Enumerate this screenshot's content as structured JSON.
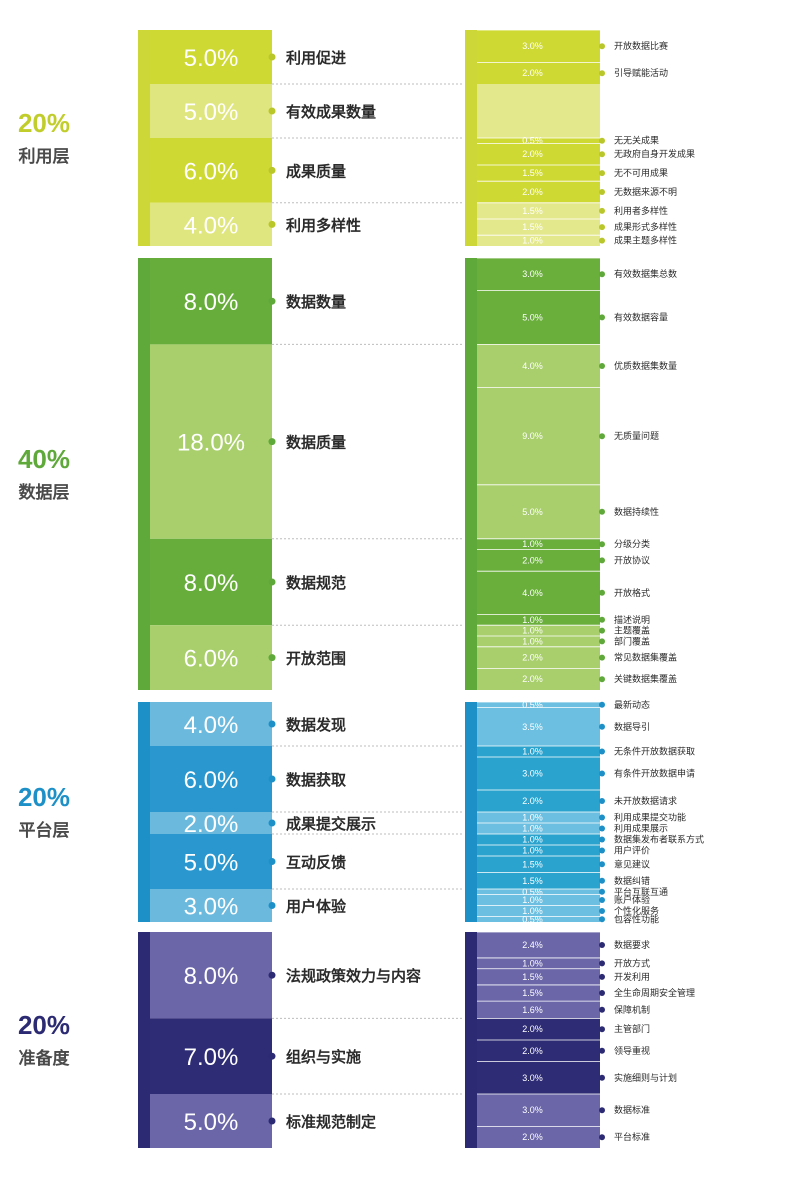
{
  "chart_data": {
    "type": "table",
    "title": "",
    "levels": [
      {
        "pct": "20%",
        "name": "利用层",
        "colors": {
          "accent": "#cdd838",
          "dark": "#cfd933",
          "light": "#e0e67f",
          "sub_dark": "#cfd933",
          "sub_light": "#e3e88d",
          "dot": "#b9c72a",
          "pct_text": "#c1cd2b"
        },
        "groups": [
          {
            "pct": "5.0%",
            "name": "利用促进",
            "shade": "dark",
            "items": [
              {
                "pct": "3.0%",
                "name": "开放数据比赛"
              },
              {
                "pct": "2.0%",
                "name": "引导赋能活动"
              }
            ]
          },
          {
            "pct": "5.0%",
            "name": "有效成果数量",
            "shade": "light",
            "items": []
          },
          {
            "pct": "6.0%",
            "name": "成果质量",
            "shade": "dark",
            "items": [
              {
                "pct": "0.5%",
                "name": "无无关成果"
              },
              {
                "pct": "2.0%",
                "name": "无政府自身开发成果"
              },
              {
                "pct": "1.5%",
                "name": "无不可用成果"
              },
              {
                "pct": "2.0%",
                "name": "无数据来源不明"
              }
            ]
          },
          {
            "pct": "4.0%",
            "name": "利用多样性",
            "shade": "light",
            "items": [
              {
                "pct": "1.5%",
                "name": "利用者多样性"
              },
              {
                "pct": "1.5%",
                "name": "成果形式多样性"
              },
              {
                "pct": "1.0%",
                "name": "成果主题多样性"
              }
            ]
          }
        ]
      },
      {
        "pct": "40%",
        "name": "数据层",
        "colors": {
          "accent": "#5fa83a",
          "dark": "#67ad3c",
          "light": "#a9cf6c",
          "sub_dark": "#6aae3c",
          "sub_light": "#a9cf6c",
          "dot": "#5fa83a",
          "pct_text": "#5fa83a"
        },
        "groups": [
          {
            "pct": "8.0%",
            "name": "数据数量",
            "shade": "dark",
            "items": [
              {
                "pct": "3.0%",
                "name": "有效数据集总数"
              },
              {
                "pct": "5.0%",
                "name": "有效数据容量"
              }
            ]
          },
          {
            "pct": "18.0%",
            "name": "数据质量",
            "shade": "light",
            "items": [
              {
                "pct": "4.0%",
                "name": "优质数据集数量"
              },
              {
                "pct": "9.0%",
                "name": "无质量问题"
              },
              {
                "pct": "5.0%",
                "name": "数据持续性"
              }
            ]
          },
          {
            "pct": "8.0%",
            "name": "数据规范",
            "shade": "dark",
            "items": [
              {
                "pct": "1.0%",
                "name": "分级分类"
              },
              {
                "pct": "2.0%",
                "name": "开放协议"
              },
              {
                "pct": "4.0%",
                "name": "开放格式"
              },
              {
                "pct": "1.0%",
                "name": "描述说明"
              }
            ]
          },
          {
            "pct": "6.0%",
            "name": "开放范围",
            "shade": "light",
            "items": [
              {
                "pct": "1.0%",
                "name": "主题覆盖"
              },
              {
                "pct": "1.0%",
                "name": "部门覆盖"
              },
              {
                "pct": "2.0%",
                "name": "常见数据集覆盖"
              },
              {
                "pct": "2.0%",
                "name": "关键数据集覆盖"
              }
            ]
          }
        ]
      },
      {
        "pct": "20%",
        "name": "平台层",
        "colors": {
          "accent": "#1e90c8",
          "dark": "#2a97cf",
          "light": "#6cb9de",
          "sub_dark": "#2aa3cf",
          "sub_light": "#6cbfe0",
          "dot": "#1e90c8",
          "pct_text": "#1e90c8"
        },
        "groups": [
          {
            "pct": "4.0%",
            "name": "数据发现",
            "shade": "light",
            "items": [
              {
                "pct": "0.5%",
                "name": "最新动态"
              },
              {
                "pct": "3.5%",
                "name": "数据导引"
              }
            ]
          },
          {
            "pct": "6.0%",
            "name": "数据获取",
            "shade": "dark",
            "items": [
              {
                "pct": "1.0%",
                "name": "无条件开放数据获取"
              },
              {
                "pct": "3.0%",
                "name": "有条件开放数据申请"
              },
              {
                "pct": "2.0%",
                "name": "未开放数据请求"
              }
            ]
          },
          {
            "pct": "2.0%",
            "name": "成果提交展示",
            "shade": "light",
            "items": [
              {
                "pct": "1.0%",
                "name": "利用成果提交功能"
              },
              {
                "pct": "1.0%",
                "name": "利用成果展示"
              }
            ]
          },
          {
            "pct": "5.0%",
            "name": "互动反馈",
            "shade": "dark",
            "items": [
              {
                "pct": "1.0%",
                "name": "数据集发布者联系方式"
              },
              {
                "pct": "1.0%",
                "name": "用户评价"
              },
              {
                "pct": "1.5%",
                "name": "意见建议"
              },
              {
                "pct": "1.5%",
                "name": "数据纠错"
              }
            ]
          },
          {
            "pct": "3.0%",
            "name": "用户体验",
            "shade": "light",
            "items": [
              {
                "pct": "0.5%",
                "name": "平台互联互通"
              },
              {
                "pct": "1.0%",
                "name": "账户体验"
              },
              {
                "pct": "1.0%",
                "name": "个性化服务"
              },
              {
                "pct": "0.5%",
                "name": "包容性功能"
              }
            ]
          }
        ]
      },
      {
        "pct": "20%",
        "name": "准备度",
        "colors": {
          "accent": "#2c2a72",
          "dark": "#2e2c75",
          "light": "#6a66a8",
          "sub_dark": "#2e2c75",
          "sub_light": "#6a66a8",
          "dot": "#2c2a72",
          "pct_text": "#2c2a72"
        },
        "groups": [
          {
            "pct": "8.0%",
            "name": "法规政策效力与内容",
            "shade": "light",
            "items": [
              {
                "pct": "2.4%",
                "name": "数据要求"
              },
              {
                "pct": "1.0%",
                "name": "开放方式"
              },
              {
                "pct": "1.5%",
                "name": "开发利用"
              },
              {
                "pct": "1.5%",
                "name": "全生命周期安全管理"
              },
              {
                "pct": "1.6%",
                "name": "保障机制"
              }
            ]
          },
          {
            "pct": "7.0%",
            "name": "组织与实施",
            "shade": "dark",
            "items": [
              {
                "pct": "2.0%",
                "name": "主管部门"
              },
              {
                "pct": "2.0%",
                "name": "领导重视"
              },
              {
                "pct": "3.0%",
                "name": "实施细则与计划"
              }
            ]
          },
          {
            "pct": "5.0%",
            "name": "标准规范制定",
            "shade": "light",
            "items": [
              {
                "pct": "3.0%",
                "name": "数据标准"
              },
              {
                "pct": "2.0%",
                "name": "平台标准"
              }
            ]
          }
        ]
      }
    ]
  }
}
